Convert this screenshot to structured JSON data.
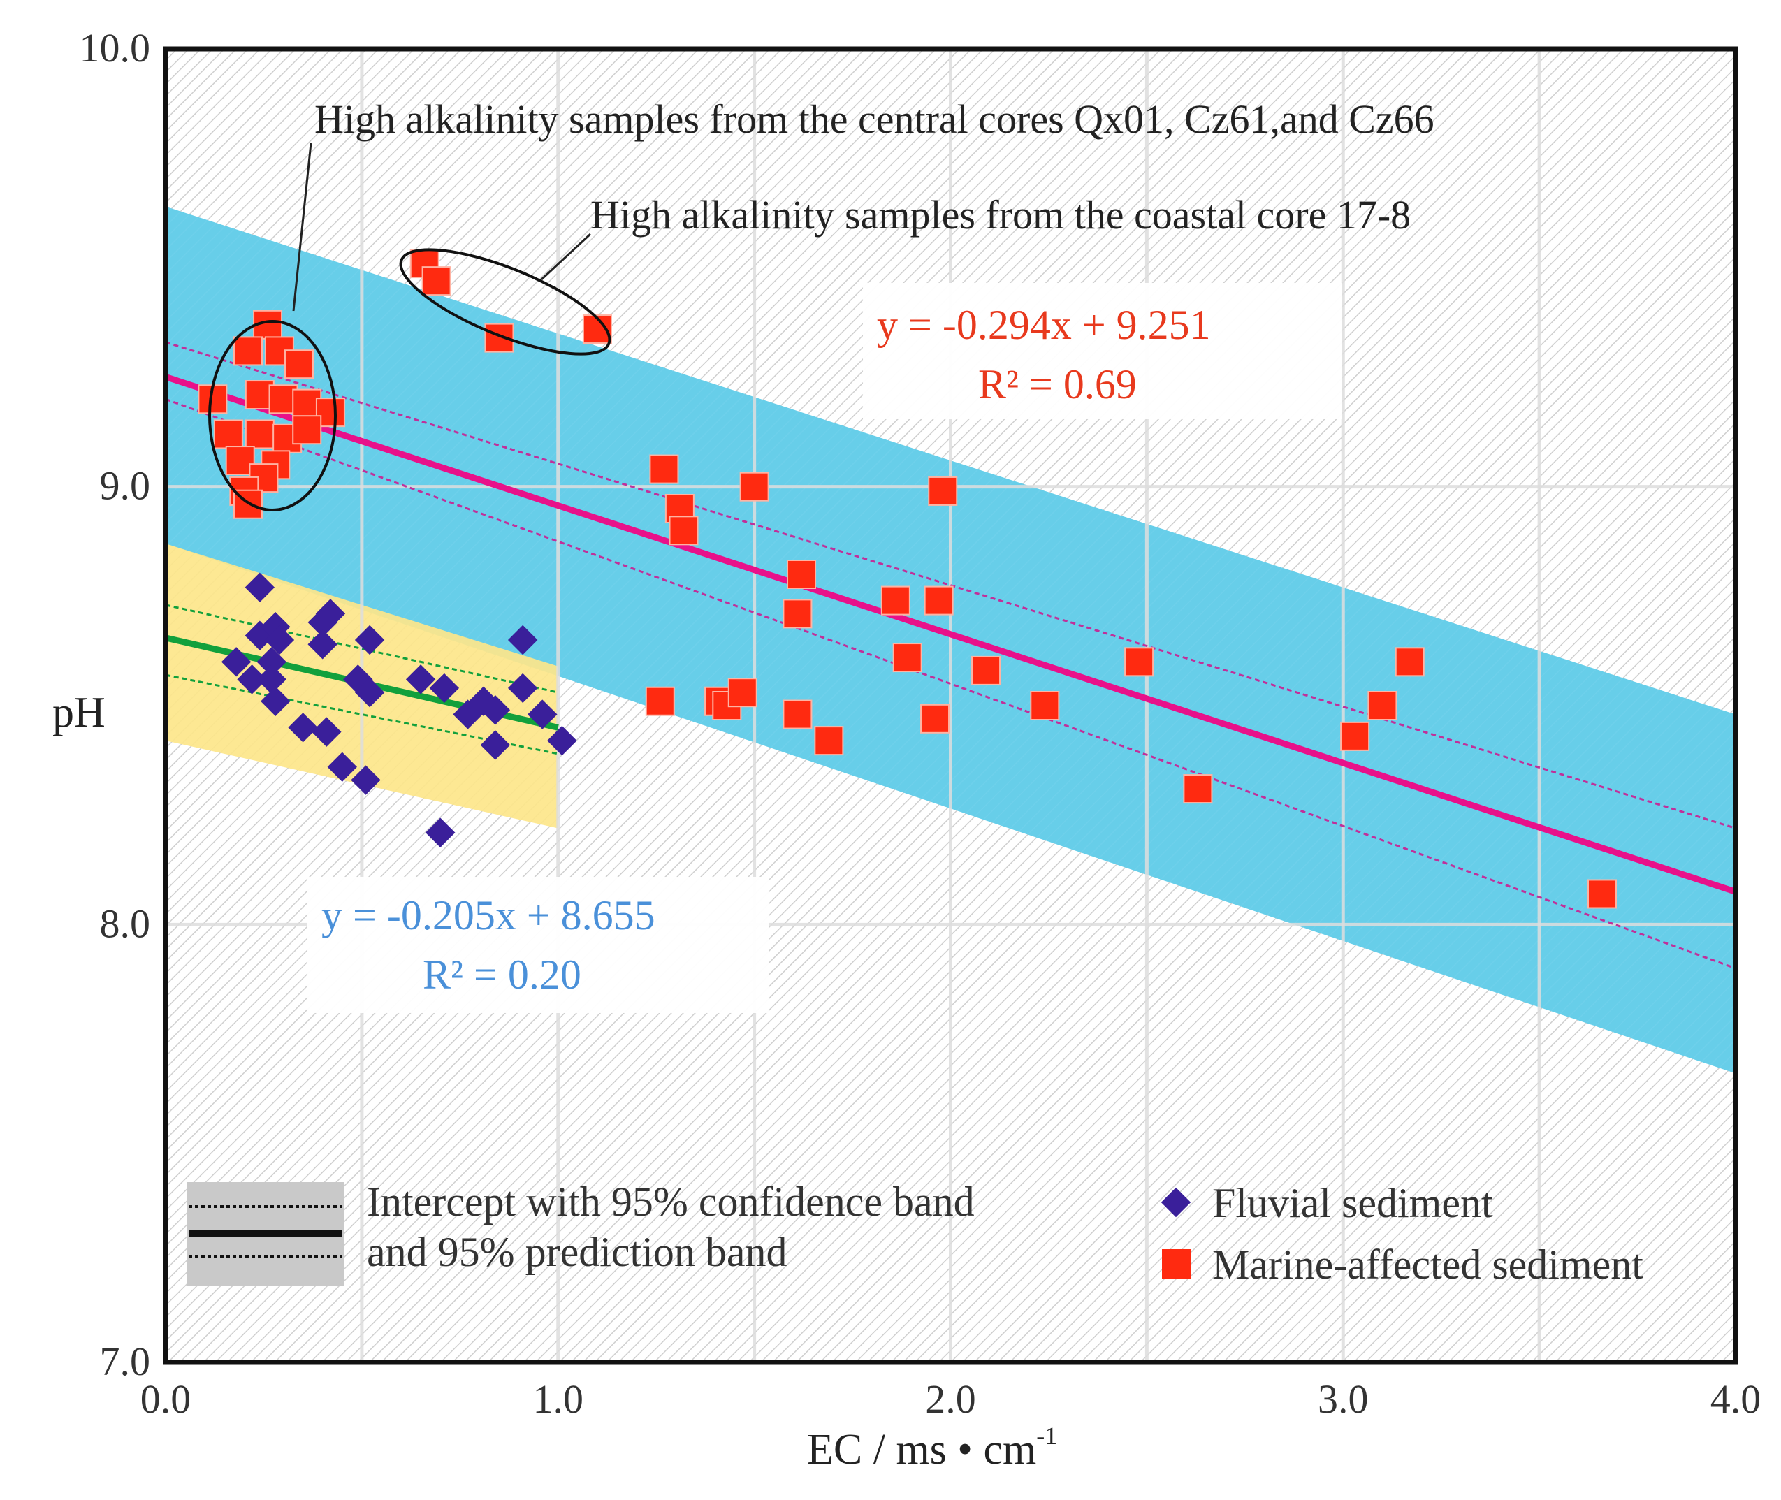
{
  "chart_data": {
    "type": "scatter",
    "title": "",
    "xlabel": "EC / ms • cm",
    "xlabel_superscript": "-1",
    "ylabel": "pH",
    "xlim": [
      0.0,
      4.0
    ],
    "ylim": [
      7.0,
      10.0
    ],
    "x_ticks": [
      0.0,
      1.0,
      2.0,
      3.0,
      4.0
    ],
    "x_tick_labels": [
      "0.0",
      "1.0",
      "2.0",
      "3.0",
      "4.0"
    ],
    "y_ticks": [
      7.0,
      8.0,
      9.0,
      10.0
    ],
    "y_tick_labels": [
      "7.0",
      "8.0",
      "9.0",
      "10.0"
    ],
    "x_minor_gridlines": [
      0.5,
      1.5,
      2.5,
      3.5
    ],
    "grid": true,
    "series": [
      {
        "name": "Fluvial sediment",
        "marker": "diamond",
        "color": "#3a1f9a",
        "points": [
          [
            0.24,
            8.77
          ],
          [
            0.18,
            8.6
          ],
          [
            0.22,
            8.56
          ],
          [
            0.24,
            8.66
          ],
          [
            0.28,
            8.68
          ],
          [
            0.29,
            8.65
          ],
          [
            0.27,
            8.6
          ],
          [
            0.27,
            8.56
          ],
          [
            0.28,
            8.51
          ],
          [
            0.4,
            8.69
          ],
          [
            0.42,
            8.71
          ],
          [
            0.4,
            8.64
          ],
          [
            0.35,
            8.45
          ],
          [
            0.41,
            8.44
          ],
          [
            0.45,
            8.36
          ],
          [
            0.51,
            8.33
          ],
          [
            0.52,
            8.65
          ],
          [
            0.49,
            8.56
          ],
          [
            0.52,
            8.53
          ],
          [
            0.65,
            8.56
          ],
          [
            0.71,
            8.54
          ],
          [
            0.7,
            8.21
          ],
          [
            0.77,
            8.48
          ],
          [
            0.81,
            8.51
          ],
          [
            0.84,
            8.49
          ],
          [
            0.84,
            8.41
          ],
          [
            0.91,
            8.65
          ],
          [
            0.91,
            8.54
          ],
          [
            0.96,
            8.48
          ],
          [
            1.01,
            8.42
          ]
        ],
        "fit": {
          "slope": -0.205,
          "intercept": 8.655,
          "x_range": [
            0.0,
            1.0
          ],
          "color": "#12a03c",
          "equation": "y = -0.205x + 8.655",
          "r2": "R² = 0.20"
        },
        "confidence_band": {
          "upper": [
            [
              0.0,
              8.73
            ],
            [
              1.0,
              8.53
            ]
          ],
          "lower": [
            [
              0.0,
              8.57
            ],
            [
              1.0,
              8.39
            ]
          ],
          "color": "#12a03c"
        },
        "prediction_band": {
          "upper": [
            [
              0.0,
              8.87
            ],
            [
              1.0,
              8.59
            ]
          ],
          "lower": [
            [
              0.0,
              8.42
            ],
            [
              1.0,
              8.22
            ]
          ],
          "color": "#fde68a"
        }
      },
      {
        "name": "Marine-affected sediment",
        "marker": "square",
        "color": "#ff2a10",
        "points": [
          [
            0.66,
            9.51
          ],
          [
            0.69,
            9.47
          ],
          [
            0.85,
            9.34
          ],
          [
            1.1,
            9.36
          ],
          [
            0.12,
            9.2
          ],
          [
            0.26,
            9.37
          ],
          [
            0.21,
            9.31
          ],
          [
            0.29,
            9.31
          ],
          [
            0.34,
            9.28
          ],
          [
            0.24,
            9.21
          ],
          [
            0.3,
            9.2
          ],
          [
            0.36,
            9.19
          ],
          [
            0.42,
            9.17
          ],
          [
            0.16,
            9.12
          ],
          [
            0.24,
            9.12
          ],
          [
            0.31,
            9.11
          ],
          [
            0.36,
            9.13
          ],
          [
            0.19,
            9.06
          ],
          [
            0.28,
            9.05
          ],
          [
            0.25,
            9.02
          ],
          [
            0.2,
            8.99
          ],
          [
            0.21,
            8.96
          ],
          [
            1.27,
            9.04
          ],
          [
            1.31,
            8.95
          ],
          [
            1.32,
            8.9
          ],
          [
            1.5,
            9.0
          ],
          [
            1.98,
            8.99
          ],
          [
            1.62,
            8.8
          ],
          [
            1.61,
            8.71
          ],
          [
            1.86,
            8.74
          ],
          [
            1.97,
            8.74
          ],
          [
            1.89,
            8.61
          ],
          [
            2.09,
            8.58
          ],
          [
            2.48,
            8.6
          ],
          [
            2.24,
            8.5
          ],
          [
            3.17,
            8.6
          ],
          [
            3.1,
            8.5
          ],
          [
            3.03,
            8.43
          ],
          [
            2.63,
            8.31
          ],
          [
            3.66,
            8.07
          ],
          [
            1.26,
            8.51
          ],
          [
            1.41,
            8.51
          ],
          [
            1.43,
            8.5
          ],
          [
            1.47,
            8.53
          ],
          [
            1.61,
            8.48
          ],
          [
            1.69,
            8.42
          ],
          [
            1.96,
            8.47
          ]
        ],
        "fit": {
          "slope": -0.294,
          "intercept": 9.251,
          "x_range": [
            0.0,
            4.0
          ],
          "color": "#e8118a",
          "equation": "y = -0.294x + 9.251",
          "r2": "R² = 0.69"
        },
        "confidence_band": {
          "upper": [
            [
              0.0,
              9.33
            ],
            [
              4.0,
              8.22
            ]
          ],
          "lower": [
            [
              0.0,
              9.2
            ],
            [
              4.0,
              7.9
            ]
          ],
          "color": "#c0309a"
        },
        "prediction_band": {
          "upper": [
            [
              0.0,
              9.64
            ],
            [
              4.0,
              8.48
            ]
          ],
          "lower": [
            [
              0.0,
              8.87
            ],
            [
              4.0,
              7.66
            ]
          ],
          "color": "#5fcbe8"
        }
      }
    ],
    "annotations": [
      {
        "text": "High alkalinity samples from the central cores Qx01, Cz61,and Cz66",
        "target_x": 0.27,
        "target_y": 9.15
      },
      {
        "text": "High alkalinity samples from the coastal core 17-8",
        "target_x": 0.9,
        "target_y": 9.42
      }
    ],
    "legend": {
      "placement": "bottom",
      "band_text_line1": "Intercept with  95% confidence band",
      "band_text_line2": "and 95% prediction band",
      "entries": [
        "Fluvial sediment",
        "Marine-affected sediment"
      ]
    }
  }
}
